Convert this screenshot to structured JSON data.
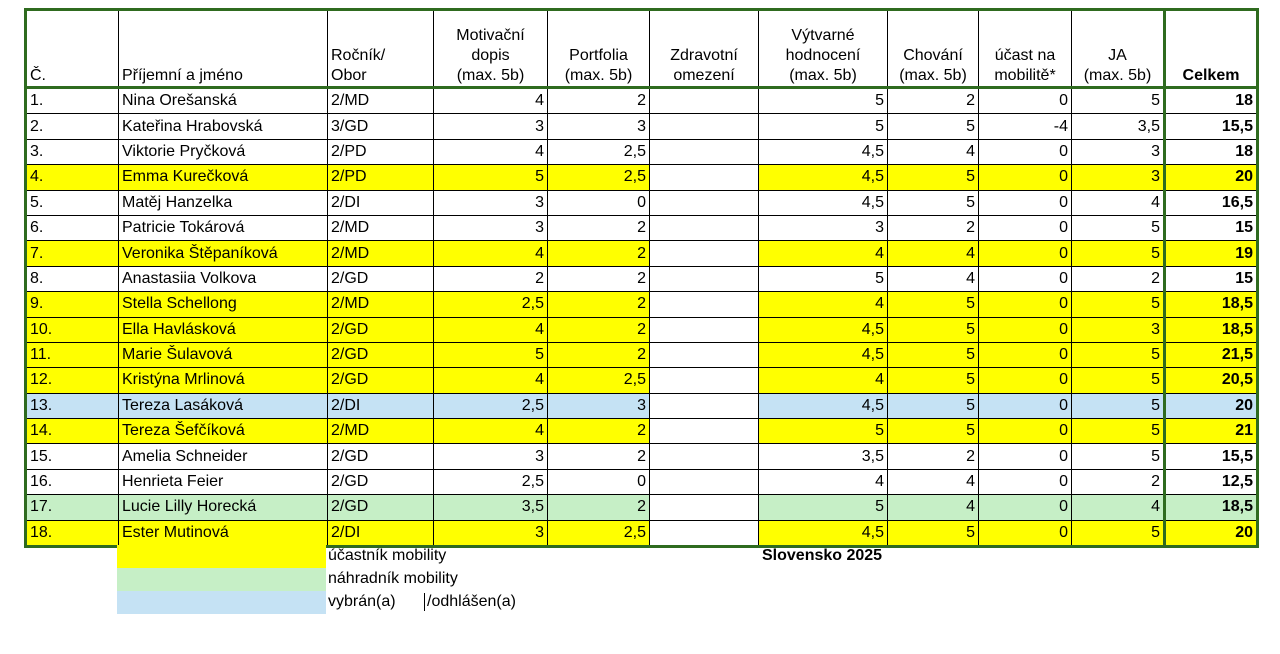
{
  "table": {
    "header": [
      [
        "Č."
      ],
      [
        "Příjemní a jméno"
      ],
      [
        "Ročník/",
        "Obor"
      ],
      [
        "Motivační",
        "dopis",
        "(max. 5b)"
      ],
      [
        "Portfolia",
        "(max. 5b)"
      ],
      [
        "Zdravotní",
        "omezení"
      ],
      [
        "Výtvarné",
        "hodnocení",
        "(max. 5b)"
      ],
      [
        "Chování",
        "(max. 5b)"
      ],
      [
        "účast na",
        "mobilitě*"
      ],
      [
        "JA",
        "(max. 5b)"
      ],
      [
        "Celkem"
      ]
    ],
    "rows": [
      {
        "fill": "#ffffff",
        "cells": [
          "1.",
          "Nina Orešanská",
          "2/MD",
          "4",
          "2",
          null,
          "5",
          "2",
          "0",
          "5",
          "18"
        ]
      },
      {
        "fill": "#ffffff",
        "cells": [
          "2.",
          "Kateřina Hrabovská",
          "3/GD",
          "3",
          "3",
          null,
          "5",
          "5",
          "-4",
          "3,5",
          "15,5"
        ]
      },
      {
        "fill": "#ffffff",
        "cells": [
          "3.",
          "Viktorie Pryčková",
          "2/PD",
          "4",
          "2,5",
          null,
          "4,5",
          "4",
          "0",
          "3",
          "18"
        ]
      },
      {
        "fill": "#ffff00",
        "cells": [
          "4.",
          "Emma Kurečková",
          "2/PD",
          "5",
          "2,5",
          null,
          "4,5",
          "5",
          "0",
          "3",
          "20"
        ]
      },
      {
        "fill": "#ffffff",
        "cells": [
          "5.",
          "Matěj Hanzelka",
          "2/DI",
          "3",
          "0",
          null,
          "4,5",
          "5",
          "0",
          "4",
          "16,5"
        ]
      },
      {
        "fill": "#ffffff",
        "cells": [
          "6.",
          "Patricie Tokárová",
          "2/MD",
          "3",
          "2",
          null,
          "3",
          "2",
          "0",
          "5",
          "15"
        ]
      },
      {
        "fill": "#ffff00",
        "cells": [
          "7.",
          "Veronika Štěpaníková",
          "2/MD",
          "4",
          "2",
          null,
          "4",
          "4",
          "0",
          "5",
          "19"
        ]
      },
      {
        "fill": "#ffffff",
        "cells": [
          "8.",
          "Anastasiia Volkova",
          "2/GD",
          "2",
          "2",
          null,
          "5",
          "4",
          "0",
          "2",
          "15"
        ]
      },
      {
        "fill": "#ffff00",
        "cells": [
          "9.",
          "Stella Schellong",
          "2/MD",
          "2,5",
          "2",
          null,
          "4",
          "5",
          "0",
          "5",
          "18,5"
        ]
      },
      {
        "fill": "#ffff00",
        "cells": [
          "10.",
          "Ella Havlásková",
          "2/GD",
          "4",
          "2",
          null,
          "4,5",
          "5",
          "0",
          "3",
          "18,5"
        ]
      },
      {
        "fill": "#ffff00",
        "cells": [
          "11.",
          "Marie Šulavová",
          "2/GD",
          "5",
          "2",
          null,
          "4,5",
          "5",
          "0",
          "5",
          "21,5"
        ]
      },
      {
        "fill": "#ffff00",
        "cells": [
          "12.",
          "Kristýna Mrlinová",
          "2/GD",
          "4",
          "2,5",
          null,
          "4",
          "5",
          "0",
          "5",
          "20,5"
        ]
      },
      {
        "fill": "#c5e2f4",
        "cells": [
          "13.",
          "Tereza Lasáková",
          "2/DI",
          "2,5",
          "3",
          null,
          "4,5",
          "5",
          "0",
          "5",
          "20"
        ]
      },
      {
        "fill": "#ffff00",
        "cells": [
          "14.",
          "Tereza Šefčíková",
          "2/MD",
          "4",
          "2",
          null,
          "5",
          "5",
          "0",
          "5",
          "21"
        ]
      },
      {
        "fill": "#ffffff",
        "cells": [
          "15.",
          "Amelia Schneider",
          "2/GD",
          "3",
          "2",
          null,
          "3,5",
          "2",
          "0",
          "5",
          "15,5"
        ]
      },
      {
        "fill": "#ffffff",
        "cells": [
          "16.",
          "Henrieta Feier",
          "2/GD",
          "2,5",
          "0",
          null,
          "4",
          "4",
          "0",
          "2",
          "12,5"
        ]
      },
      {
        "fill": "#c6efc6",
        "cells": [
          "17.",
          "Lucie Lilly Horecká",
          "2/GD",
          "3,5",
          "2",
          null,
          "5",
          "4",
          "0",
          "4",
          "18,5"
        ]
      },
      {
        "fill": "#ffff00",
        "cells": [
          "18.",
          "Ester Mutinová",
          "2/DI",
          "3",
          "2,5",
          null,
          "4,5",
          "5",
          "0",
          "5",
          "20"
        ]
      }
    ]
  },
  "legend": [
    {
      "fill": "#ffff00",
      "label": "účastník mobility"
    },
    {
      "fill": "#c6efc6",
      "label": "náhradník mobility"
    },
    {
      "fill": "#c5e2f4",
      "label": "vybrán(a)",
      "label2": "/odhlášen(a)"
    }
  ],
  "note": "Slovensko 2025"
}
